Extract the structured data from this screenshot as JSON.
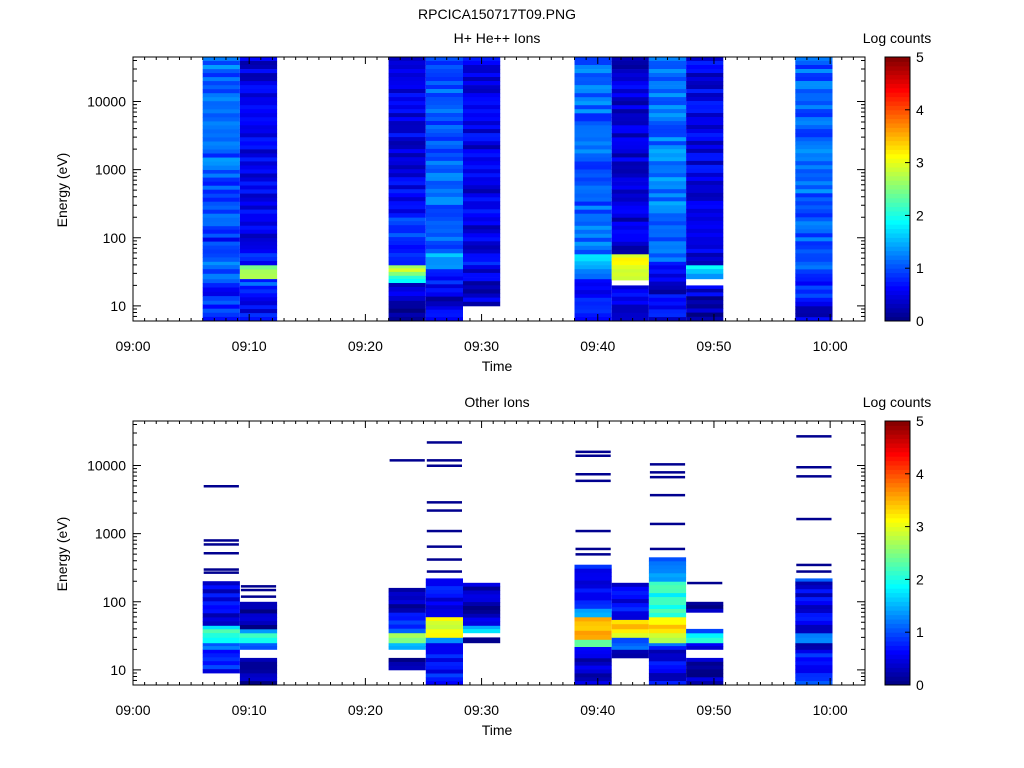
{
  "figure": {
    "filename": "RPCICA150717T09.PNG"
  },
  "chart_data": [
    {
      "type": "heatmap",
      "title": "H+ He++ Ions",
      "xlabel": "Time",
      "ylabel": "Energy (eV)",
      "y_scale": "log",
      "y_ticks": [
        10,
        100,
        1000,
        10000
      ],
      "y_tick_labels": [
        "10",
        "100",
        "1000",
        "10000"
      ],
      "x_tick_labels": [
        "09:00",
        "09:10",
        "09:20",
        "09:30",
        "09:40",
        "09:50",
        "10:00"
      ],
      "x_range_minutes": [
        0,
        63
      ],
      "y_range": [
        6,
        45000
      ],
      "colorbar": {
        "label": "Log counts",
        "range": [
          0,
          5
        ],
        "tick_labels": [
          "0",
          "1",
          "2",
          "3",
          "4",
          "5"
        ]
      },
      "columns": [
        {
          "t0": 6.0,
          "t1": 9.2,
          "emin": 6,
          "emax": 45000,
          "bands": [
            {
              "e0": 6,
              "e1": 12,
              "v": 0.9
            },
            {
              "e0": 12,
              "e1": 25,
              "v": 0.8
            },
            {
              "e0": 25,
              "e1": 35,
              "v": 1.0
            },
            {
              "e0": 35,
              "e1": 45,
              "v": 1.3
            },
            {
              "e0": 45,
              "e1": 150,
              "v": 0.8
            },
            {
              "e0": 150,
              "e1": 1000,
              "v": 1.0
            },
            {
              "e0": 1000,
              "e1": 45000,
              "v": 1.1
            }
          ]
        },
        {
          "t0": 9.2,
          "t1": 12.4,
          "emin": 6,
          "emax": 45000,
          "bands": [
            {
              "e0": 6,
              "e1": 20,
              "v": 0.6
            },
            {
              "e0": 20,
              "e1": 25,
              "v": 1.0
            },
            {
              "e0": 25,
              "e1": 40,
              "v": 2.7
            },
            {
              "e0": 40,
              "e1": 100,
              "v": 0.7
            },
            {
              "e0": 100,
              "e1": 45000,
              "v": 0.5
            }
          ]
        },
        {
          "t0": 22.0,
          "t1": 25.2,
          "emin": 6,
          "emax": 45000,
          "bands": [
            {
              "e0": 6,
              "e1": 12,
              "v": 0.2
            },
            {
              "e0": 12,
              "e1": 22,
              "v": 0.4
            },
            {
              "e0": 22,
              "e1": 28,
              "v": 1.8
            },
            {
              "e0": 28,
              "e1": 40,
              "v": 2.8
            },
            {
              "e0": 40,
              "e1": 200,
              "v": 0.8
            },
            {
              "e0": 200,
              "e1": 45000,
              "v": 0.5
            }
          ]
        },
        {
          "t0": 25.2,
          "t1": 28.4,
          "emin": 6,
          "emax": 45000,
          "bands": [
            {
              "e0": 6,
              "e1": 10,
              "v": 0.8
            },
            {
              "e0": 10,
              "e1": 16,
              "v": 0.4
            },
            {
              "e0": 16,
              "e1": 35,
              "v": 0.7
            },
            {
              "e0": 35,
              "e1": 45,
              "v": 1.3
            },
            {
              "e0": 45,
              "e1": 60,
              "v": 1.6
            },
            {
              "e0": 60,
              "e1": 45000,
              "v": 1.1
            }
          ]
        },
        {
          "t0": 28.4,
          "t1": 31.6,
          "emin": 10,
          "emax": 45000,
          "bands": [
            {
              "e0": 10,
              "e1": 35,
              "v": 0.4
            },
            {
              "e0": 35,
              "e1": 45,
              "v": 0.8
            },
            {
              "e0": 45,
              "e1": 45000,
              "v": 0.5
            }
          ]
        },
        {
          "t0": 38.0,
          "t1": 41.2,
          "emin": 6,
          "emax": 45000,
          "bands": [
            {
              "e0": 6,
              "e1": 15,
              "v": 0.8
            },
            {
              "e0": 15,
              "e1": 25,
              "v": 0.5
            },
            {
              "e0": 25,
              "e1": 35,
              "v": 1.2
            },
            {
              "e0": 35,
              "e1": 58,
              "v": 1.7
            },
            {
              "e0": 58,
              "e1": 45000,
              "v": 1.1
            }
          ]
        },
        {
          "t0": 41.2,
          "t1": 44.4,
          "emin": 6,
          "emax": 45000,
          "bands": [
            {
              "e0": 6,
              "e1": 12,
              "v": 0.4
            },
            {
              "e0": 12,
              "e1": 20,
              "v": 0.6
            },
            {
              "e0": 24,
              "e1": 35,
              "v": 2.8
            },
            {
              "e0": 35,
              "e1": 58,
              "v": 3.2
            },
            {
              "e0": 58,
              "e1": 45000,
              "v": 0.4
            }
          ]
        },
        {
          "t0": 44.4,
          "t1": 47.6,
          "emin": 6,
          "emax": 45000,
          "bands": [
            {
              "e0": 6,
              "e1": 15,
              "v": 0.6
            },
            {
              "e0": 15,
              "e1": 30,
              "v": 0.4
            },
            {
              "e0": 30,
              "e1": 45,
              "v": 0.8
            },
            {
              "e0": 45,
              "e1": 45000,
              "v": 1.2
            }
          ]
        },
        {
          "t0": 47.6,
          "t1": 50.8,
          "emin": 6,
          "emax": 45000,
          "bands": [
            {
              "e0": 6,
              "e1": 14,
              "v": 0.2
            },
            {
              "e0": 14,
              "e1": 20,
              "v": 0.5
            },
            {
              "e0": 25,
              "e1": 30,
              "v": 1.3
            },
            {
              "e0": 30,
              "e1": 40,
              "v": 1.8
            },
            {
              "e0": 40,
              "e1": 45000,
              "v": 0.5
            }
          ]
        },
        {
          "t0": 57.0,
          "t1": 60.2,
          "emin": 6,
          "emax": 45000,
          "bands": [
            {
              "e0": 6,
              "e1": 10,
              "v": 0.4
            },
            {
              "e0": 10,
              "e1": 30,
              "v": 0.8
            },
            {
              "e0": 30,
              "e1": 45,
              "v": 1.2
            },
            {
              "e0": 45,
              "e1": 45000,
              "v": 1.1
            }
          ]
        }
      ]
    },
    {
      "type": "heatmap",
      "title": "Other Ions",
      "xlabel": "Time",
      "ylabel": "Energy (eV)",
      "y_scale": "log",
      "y_ticks": [
        10,
        100,
        1000,
        10000
      ],
      "y_tick_labels": [
        "10",
        "100",
        "1000",
        "10000"
      ],
      "x_tick_labels": [
        "09:00",
        "09:10",
        "09:20",
        "09:30",
        "09:40",
        "09:50",
        "10:00"
      ],
      "x_range_minutes": [
        0,
        63
      ],
      "y_range": [
        6,
        45000
      ],
      "colorbar": {
        "label": "Log counts",
        "range": [
          0,
          5
        ],
        "tick_labels": [
          "0",
          "1",
          "2",
          "3",
          "4",
          "5"
        ]
      },
      "columns": [
        {
          "t0": 6.0,
          "t1": 9.2,
          "emin": 9,
          "emax": 200,
          "bands": [
            {
              "e0": 9,
              "e1": 20,
              "v": 0.7
            },
            {
              "e0": 20,
              "e1": 25,
              "v": 1.0
            },
            {
              "e0": 25,
              "e1": 30,
              "v": 1.6
            },
            {
              "e0": 30,
              "e1": 40,
              "v": 2.2
            },
            {
              "e0": 40,
              "e1": 45,
              "v": 1.7
            },
            {
              "e0": 45,
              "e1": 200,
              "v": 0.5
            }
          ],
          "lines": [
            5000,
            800,
            700,
            520,
            300,
            270
          ]
        },
        {
          "t0": 9.2,
          "t1": 12.4,
          "emin": 6,
          "emax": 100,
          "bands": [
            {
              "e0": 6,
              "e1": 15,
              "v": 0.1
            },
            {
              "e0": 20,
              "e1": 25,
              "v": 1.0
            },
            {
              "e0": 25,
              "e1": 35,
              "v": 1.9
            },
            {
              "e0": 35,
              "e1": 40,
              "v": 1.5
            },
            {
              "e0": 40,
              "e1": 100,
              "v": 0.3
            }
          ],
          "lines": [
            170,
            150,
            120
          ]
        },
        {
          "t0": 22.0,
          "t1": 25.2,
          "emin": 10,
          "emax": 160,
          "bands": [
            {
              "e0": 10,
              "e1": 15,
              "v": 0.2
            },
            {
              "e0": 20,
              "e1": 25,
              "v": 1.4
            },
            {
              "e0": 25,
              "e1": 35,
              "v": 2.5
            },
            {
              "e0": 35,
              "e1": 70,
              "v": 1.0
            },
            {
              "e0": 70,
              "e1": 160,
              "v": 0.3
            }
          ],
          "lines": [
            12000
          ]
        },
        {
          "t0": 25.2,
          "t1": 28.4,
          "emin": 6,
          "emax": 220,
          "bands": [
            {
              "e0": 6,
              "e1": 25,
              "v": 0.7
            },
            {
              "e0": 25,
              "e1": 30,
              "v": 1.4
            },
            {
              "e0": 30,
              "e1": 40,
              "v": 3.3
            },
            {
              "e0": 40,
              "e1": 60,
              "v": 3.0
            },
            {
              "e0": 60,
              "e1": 220,
              "v": 0.6
            }
          ],
          "lines": [
            22000,
            12000,
            10000,
            2900,
            2200,
            1100,
            650,
            420,
            280
          ]
        },
        {
          "t0": 28.4,
          "t1": 31.6,
          "emin": 25,
          "emax": 190,
          "bands": [
            {
              "e0": 25,
              "e1": 30,
              "v": 0.1
            },
            {
              "e0": 35,
              "e1": 45,
              "v": 1.6
            },
            {
              "e0": 45,
              "e1": 190,
              "v": 0.3
            }
          ]
        },
        {
          "t0": 38.0,
          "t1": 41.2,
          "emin": 6,
          "emax": 350,
          "bands": [
            {
              "e0": 6,
              "e1": 15,
              "v": 0.4
            },
            {
              "e0": 15,
              "e1": 22,
              "v": 0.8
            },
            {
              "e0": 22,
              "e1": 28,
              "v": 2.4
            },
            {
              "e0": 28,
              "e1": 38,
              "v": 3.7
            },
            {
              "e0": 38,
              "e1": 60,
              "v": 3.6
            },
            {
              "e0": 60,
              "e1": 80,
              "v": 1.5
            },
            {
              "e0": 80,
              "e1": 350,
              "v": 0.6
            }
          ],
          "lines": [
            16000,
            14000,
            7500,
            6000,
            1100,
            600,
            500
          ]
        },
        {
          "t0": 41.2,
          "t1": 44.4,
          "emin": 15,
          "emax": 190,
          "bands": [
            {
              "e0": 15,
              "e1": 20,
              "v": 0.1
            },
            {
              "e0": 20,
              "e1": 25,
              "v": 1.2
            },
            {
              "e0": 25,
              "e1": 30,
              "v": 0.8
            },
            {
              "e0": 30,
              "e1": 40,
              "v": 3.2
            },
            {
              "e0": 40,
              "e1": 55,
              "v": 3.5
            },
            {
              "e0": 55,
              "e1": 190,
              "v": 0.6
            }
          ]
        },
        {
          "t0": 44.4,
          "t1": 47.6,
          "emin": 6,
          "emax": 450,
          "bands": [
            {
              "e0": 6,
              "e1": 20,
              "v": 0.5
            },
            {
              "e0": 20,
              "e1": 25,
              "v": 1.0
            },
            {
              "e0": 25,
              "e1": 35,
              "v": 2.9
            },
            {
              "e0": 35,
              "e1": 60,
              "v": 3.3
            },
            {
              "e0": 60,
              "e1": 200,
              "v": 2.0
            },
            {
              "e0": 200,
              "e1": 450,
              "v": 1.2
            }
          ],
          "lines": [
            10500,
            8000,
            6800,
            3700,
            1400,
            600
          ]
        },
        {
          "t0": 47.6,
          "t1": 50.8,
          "emin": 6,
          "emax": 190,
          "bands": [
            {
              "e0": 6,
              "e1": 15,
              "v": 0.2
            },
            {
              "e0": 20,
              "e1": 25,
              "v": 0.5
            },
            {
              "e0": 25,
              "e1": 35,
              "v": 1.8
            },
            {
              "e0": 35,
              "e1": 40,
              "v": 0.8
            },
            {
              "e0": 70,
              "e1": 100,
              "v": 0.1
            }
          ],
          "lines": [
            190
          ]
        },
        {
          "t0": 57.0,
          "t1": 60.2,
          "emin": 6,
          "emax": 220,
          "bands": [
            {
              "e0": 6,
              "e1": 20,
              "v": 0.8
            },
            {
              "e0": 20,
              "e1": 25,
              "v": 0.4
            },
            {
              "e0": 25,
              "e1": 35,
              "v": 1.4
            },
            {
              "e0": 35,
              "e1": 200,
              "v": 0.5
            },
            {
              "e0": 200,
              "e1": 220,
              "v": 1.3
            }
          ],
          "lines": [
            27000,
            9500,
            7000,
            1650,
            350,
            280
          ]
        }
      ]
    }
  ]
}
